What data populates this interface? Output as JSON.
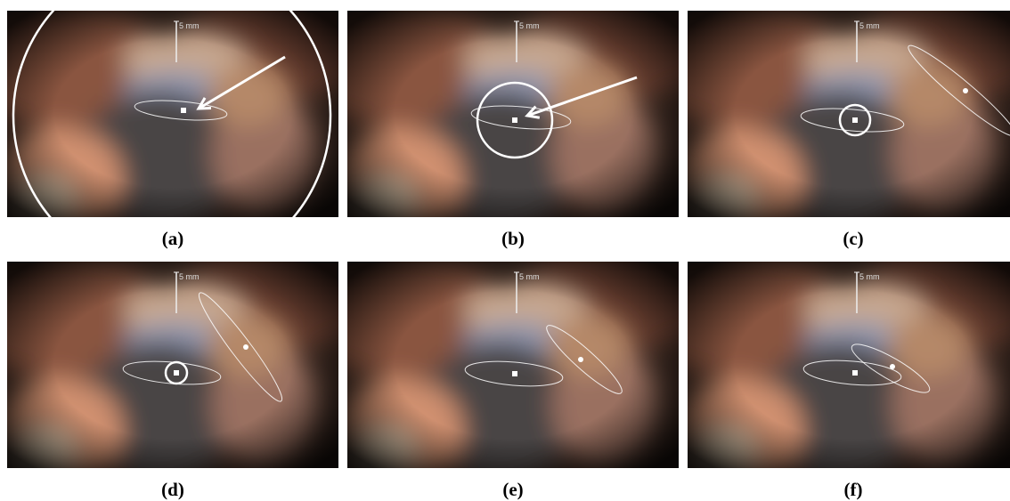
{
  "panels": [
    {
      "caption": "(a)",
      "scale_label": "5 mm"
    },
    {
      "caption": "(b)",
      "scale_label": "5 mm"
    },
    {
      "caption": "(c)",
      "scale_label": "5 mm"
    },
    {
      "caption": "(d)",
      "scale_label": "5 mm"
    },
    {
      "caption": "(e)",
      "scale_label": "5 mm"
    },
    {
      "caption": "(f)",
      "scale_label": "5 mm"
    }
  ]
}
